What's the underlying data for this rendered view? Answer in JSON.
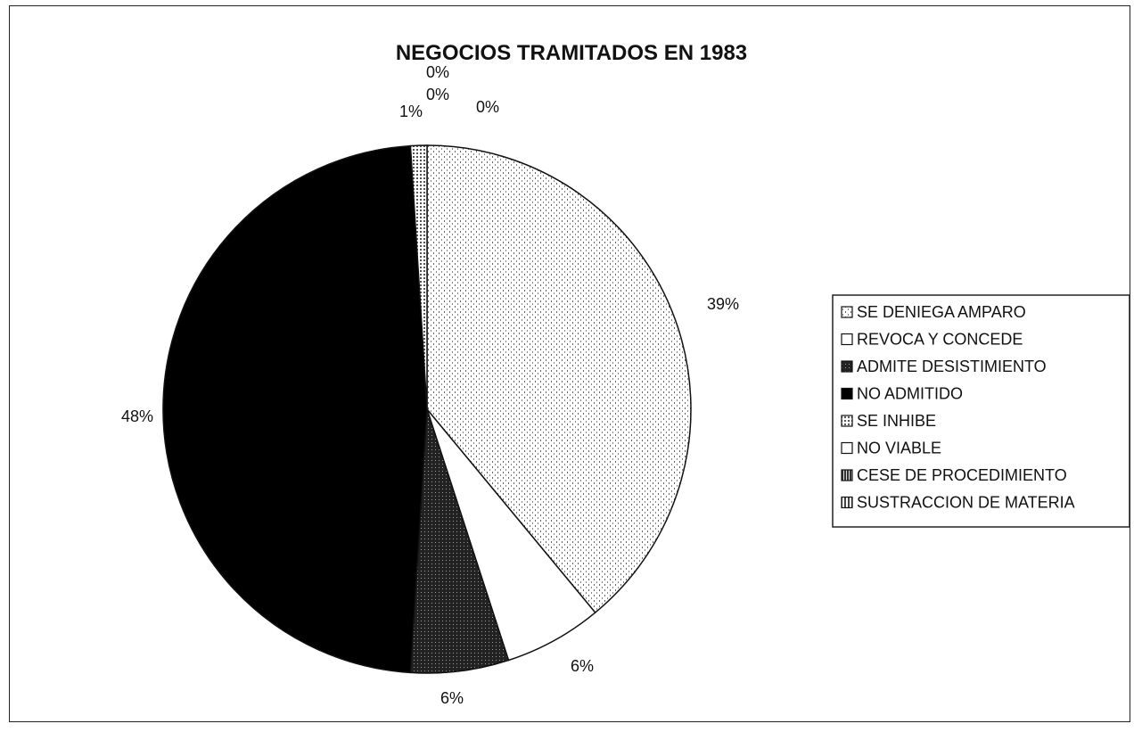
{
  "chart_data": {
    "type": "pie",
    "title": "NEGOCIOS TRAMITADOS EN 1983",
    "categories": [
      "SE DENIEGA AMPARO",
      "REVOCA Y CONCEDE",
      "ADMITE DESISTIMIENTO",
      "NO ADMITIDO",
      "SE INHIBE",
      "NO VIABLE",
      "CESE DE PROCEDIMIENTO",
      "SUSTRACCION DE MATERIA"
    ],
    "values": [
      39,
      6,
      6,
      48,
      1,
      0,
      0,
      0
    ],
    "labels": [
      "39%",
      "6%",
      "6%",
      "48%",
      "1%",
      "0%",
      "0%",
      "0%"
    ],
    "legend_position": "right"
  },
  "colors": {
    "SE DENIEGA AMPARO": "#f2f2f2",
    "REVOCA Y CONCEDE": "#ffffff",
    "ADMITE DESISTIMIENTO": "#2a2a2a",
    "NO ADMITIDO": "#000000",
    "SE INHIBE": "#bdbdbd",
    "NO VIABLE": "#ffffff",
    "CESE DE PROCEDIMIENTO": "#555555",
    "SUSTRACCION DE MATERIA": "#8a8a8a"
  }
}
